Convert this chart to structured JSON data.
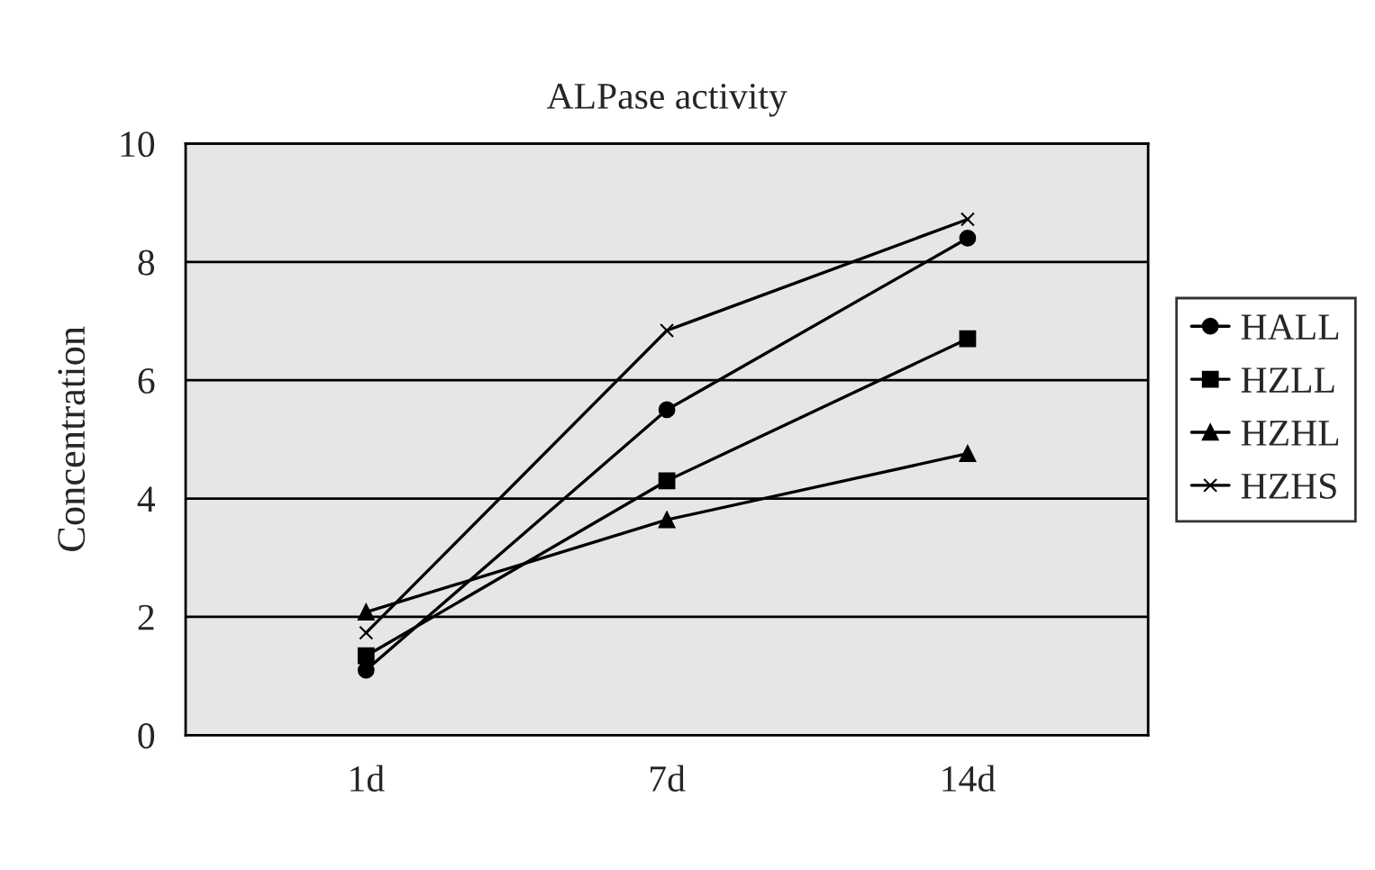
{
  "chart_data": {
    "type": "line",
    "title": "ALPase activity",
    "ylabel": "Concentration",
    "categories": [
      "1d",
      "7d",
      "14d"
    ],
    "series": [
      {
        "name": "HALL",
        "color": "#000000",
        "marker": "circle",
        "values": [
          1.1,
          5.5,
          8.4
        ]
      },
      {
        "name": "HZLL",
        "color": "#000000",
        "marker": "square",
        "values": [
          1.34,
          4.3,
          6.7
        ]
      },
      {
        "name": "HZHL",
        "color": "#000000",
        "marker": "triangle",
        "values": [
          2.08,
          3.64,
          4.76
        ]
      },
      {
        "name": "HZHS",
        "color": "#000000",
        "marker": "cross",
        "values": [
          1.73,
          6.84,
          8.72
        ]
      }
    ],
    "ylim": [
      0,
      10
    ],
    "yticks": [
      0,
      2,
      4,
      6,
      8,
      10
    ],
    "grid": "y",
    "legend": "right",
    "line_style": "solid"
  }
}
